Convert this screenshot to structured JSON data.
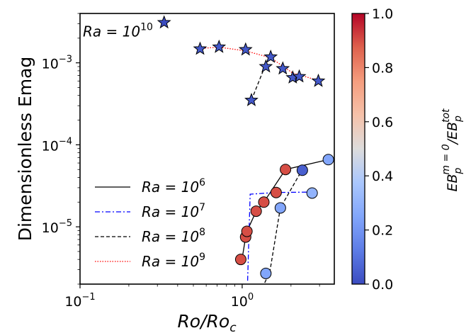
{
  "chart_data": {
    "type": "scatter",
    "xscale": "log",
    "yscale": "log",
    "xlim": [
      0.1,
      3.7
    ],
    "ylim": [
      2e-06,
      0.004
    ],
    "xlabel_base": "Ro/Ro",
    "xlabel_sub": "c",
    "ylabel": "Dimensionless Emag",
    "xticks": [
      {
        "value": 0.1,
        "base": "10",
        "exp": "−1"
      },
      {
        "value": 1,
        "base": "10",
        "exp": "0"
      }
    ],
    "yticks": [
      {
        "value": 1e-05,
        "base": "10",
        "exp": "−5"
      },
      {
        "value": 0.0001,
        "base": "10",
        "exp": "−4"
      },
      {
        "value": 0.001,
        "base": "10",
        "exp": "−3"
      }
    ],
    "annotation": {
      "base": "Ra = 10",
      "exp": "10",
      "x": 0.1,
      "y": 0.0024
    },
    "legend": {
      "position": "lower-left",
      "entries": [
        {
          "base": "Ra = 10",
          "exp": "6",
          "color": "#000000",
          "dash": "solid"
        },
        {
          "base": "Ra = 10",
          "exp": "7",
          "color": "#0000ff",
          "dash": "dashdot"
        },
        {
          "base": "Ra = 10",
          "exp": "8",
          "color": "#000000",
          "dash": "dashed"
        },
        {
          "base": "Ra = 10",
          "exp": "9",
          "color": "#ff0000",
          "dash": "dotted"
        }
      ]
    },
    "colorbar": {
      "label": "EB_p^{m=0}/EB_p^{tot}",
      "label_main": "EB",
      "label_sub": "p",
      "label_sup": "m = 0",
      "label_den": "/EB",
      "label_den_sub": "p",
      "label_den_sup": "tot",
      "range": [
        0,
        1
      ],
      "ticks": [
        "0.0",
        "0.2",
        "0.4",
        "0.6",
        "0.8",
        "1.0"
      ],
      "colormap": "coolwarm"
    },
    "lines": [
      {
        "ra": "1e6",
        "color": "#000000",
        "dash": "solid",
        "x": [
          1.0,
          1.05,
          1.07,
          1.22,
          1.36,
          1.85,
          3.4
        ],
        "y": [
          4.1e-06,
          7.5e-06,
          8.8e-06,
          1.55e-05,
          2e-05,
          5e-05,
          6.6e-05
        ]
      },
      {
        "ra": "1e7",
        "color": "#0000ff",
        "dash": "dashdot",
        "x": [
          1.08,
          1.12,
          1.6,
          2.65
        ],
        "y": [
          2.2e-06,
          2.5e-05,
          2.62e-05,
          2.65e-05
        ]
      },
      {
        "ra": "1e8",
        "color": "#000000",
        "dash": "dashed",
        "x": [
          1.33,
          1.48,
          1.72,
          2.35
        ],
        "y": [
          1.8e-06,
          2.8e-06,
          1.7e-05,
          5e-05
        ]
      },
      {
        "ra": "1e8",
        "color": "#000000",
        "dash": "dashed",
        "x": [
          1.14,
          1.38
        ],
        "y": [
          0.00035,
          0.0009
        ]
      },
      {
        "ra": "1e9",
        "color": "#ff0000",
        "dash": "dotted",
        "x": [
          0.55,
          0.72,
          1.05,
          1.5,
          2.05,
          2.95
        ],
        "y": [
          0.0015,
          0.00155,
          0.0014,
          0.00115,
          0.00075,
          0.00061
        ]
      }
    ],
    "points": [
      {
        "marker": "circle",
        "x": 0.98,
        "y": 4e-06,
        "c": 0.9
      },
      {
        "marker": "circle",
        "x": 1.05,
        "y": 7.5e-06,
        "c": 0.9
      },
      {
        "marker": "circle",
        "x": 1.07,
        "y": 8.8e-06,
        "c": 0.9
      },
      {
        "marker": "circle",
        "x": 1.22,
        "y": 1.55e-05,
        "c": 0.9
      },
      {
        "marker": "circle",
        "x": 1.36,
        "y": 2e-05,
        "c": 0.9
      },
      {
        "marker": "circle",
        "x": 1.85,
        "y": 5e-05,
        "c": 0.9
      },
      {
        "marker": "circle",
        "x": 2.35,
        "y": 4.9e-05,
        "c": 0.05
      },
      {
        "marker": "circle",
        "x": 3.4,
        "y": 6.6e-05,
        "c": 0.25
      },
      {
        "marker": "circle",
        "x": 1.62,
        "y": 2.62e-05,
        "c": 0.9
      },
      {
        "marker": "circle",
        "x": 2.7,
        "y": 2.58e-05,
        "c": 0.3
      },
      {
        "marker": "circle",
        "x": 1.72,
        "y": 1.7e-05,
        "c": 0.25
      },
      {
        "marker": "circle",
        "x": 1.4,
        "y": 2.7e-06,
        "c": 0.25
      },
      {
        "marker": "star",
        "x": 0.33,
        "y": 0.0031,
        "c": 0.0
      },
      {
        "marker": "star",
        "x": 0.55,
        "y": 0.00148,
        "c": 0.03
      },
      {
        "marker": "star",
        "x": 0.72,
        "y": 0.00156,
        "c": 0.03
      },
      {
        "marker": "star",
        "x": 1.05,
        "y": 0.00145,
        "c": 0.03
      },
      {
        "marker": "star",
        "x": 1.5,
        "y": 0.00118,
        "c": 0.03
      },
      {
        "marker": "star",
        "x": 1.4,
        "y": 0.0009,
        "c": 0.03
      },
      {
        "marker": "star",
        "x": 1.78,
        "y": 0.00085,
        "c": 0.03
      },
      {
        "marker": "star",
        "x": 2.05,
        "y": 0.00066,
        "c": 0.03
      },
      {
        "marker": "star",
        "x": 2.25,
        "y": 0.00068,
        "c": 0.03
      },
      {
        "marker": "star",
        "x": 2.95,
        "y": 0.0006,
        "c": 0.03
      },
      {
        "marker": "star",
        "x": 1.14,
        "y": 0.00035,
        "c": 0.03
      }
    ]
  }
}
